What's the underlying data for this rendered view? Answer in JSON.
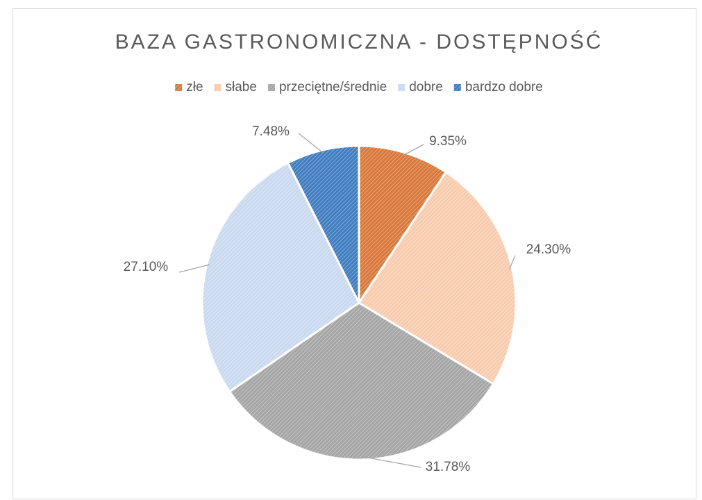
{
  "chart_data": {
    "type": "pie",
    "title": "BAZA GASTRONOMICZNA - DOSTĘPNOŚĆ",
    "categories": [
      "złe",
      "słabe",
      "przeciętne/średnie",
      "dobre",
      "bardzo dobre"
    ],
    "values": [
      9.35,
      24.3,
      31.78,
      27.1,
      7.48
    ],
    "value_labels": [
      "9.35%",
      "24.30%",
      "31.78%",
      "27.10%",
      "7.48%"
    ],
    "colors": [
      "#d9773a",
      "#f8cbad",
      "#a5a5a5",
      "#c9d9f0",
      "#3f7cc0"
    ],
    "legend": "top"
  }
}
